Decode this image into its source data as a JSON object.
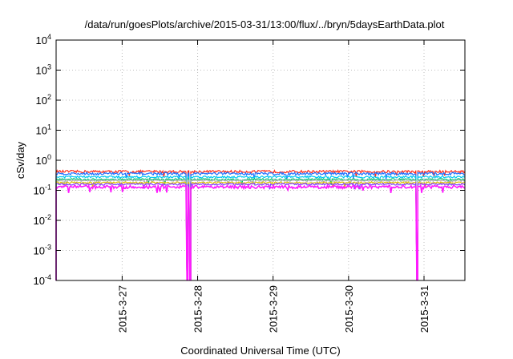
{
  "chart_data": {
    "type": "line",
    "title": "/data/run/goesPlots/archive/2015-03-31/13:00/flux/../bryn/5daysEarthData.plot",
    "xlabel": "Coordinated Universal Time (UTC)",
    "ylabel": "cSv/day",
    "yscale": "log",
    "ylim": [
      0.0001,
      10000
    ],
    "xlim": [
      "2015-03-26T03:00",
      "2015-03-31T13:00"
    ],
    "grid": true,
    "yticks": [
      {
        "value": 0.0001,
        "base": "10",
        "exp": "-4"
      },
      {
        "value": 0.001,
        "base": "10",
        "exp": "-3"
      },
      {
        "value": 0.01,
        "base": "10",
        "exp": "-2"
      },
      {
        "value": 0.1,
        "base": "10",
        "exp": "-1"
      },
      {
        "value": 1,
        "base": "10",
        "exp": "0"
      },
      {
        "value": 10,
        "base": "10",
        "exp": "1"
      },
      {
        "value": 100,
        "base": "10",
        "exp": "2"
      },
      {
        "value": 1000,
        "base": "10",
        "exp": "3"
      },
      {
        "value": 10000,
        "base": "10",
        "exp": "4"
      }
    ],
    "xticks": [
      {
        "value": "2015-03-27T00:00",
        "label": "2015-3-27"
      },
      {
        "value": "2015-03-28T00:00",
        "label": "2015-3-28"
      },
      {
        "value": "2015-03-29T00:00",
        "label": "2015-3-29"
      },
      {
        "value": "2015-03-30T00:00",
        "label": "2015-3-30"
      },
      {
        "value": "2015-03-31T00:00",
        "label": "2015-3-31"
      }
    ],
    "gaps": [
      {
        "from": "2015-03-27T20:30",
        "to": "2015-03-27T20:50"
      },
      {
        "from": "2015-03-27T21:25",
        "to": "2015-03-27T21:40"
      },
      {
        "from": "2015-03-30T21:35",
        "to": "2015-03-30T22:00"
      }
    ],
    "series": [
      {
        "color": "#ff2a1a",
        "level": 0.42,
        "jitter": 0.1
      },
      {
        "color": "#1f6fff",
        "level": 0.36,
        "jitter": 0.1
      },
      {
        "color": "#00c8f0",
        "level": 0.28,
        "jitter": 0.08
      },
      {
        "color": "#00c070",
        "level": 0.23,
        "jitter": 0.07
      },
      {
        "color": "#b0b0b0",
        "level": 0.21,
        "jitter": 0.06
      },
      {
        "color": "#e0c000",
        "level": 0.18,
        "jitter": 0.06
      },
      {
        "color": "#8040ff",
        "level": 0.16,
        "jitter": 0.07
      },
      {
        "color": "#ff1aff",
        "level": 0.13,
        "jitter": 0.12
      }
    ]
  }
}
